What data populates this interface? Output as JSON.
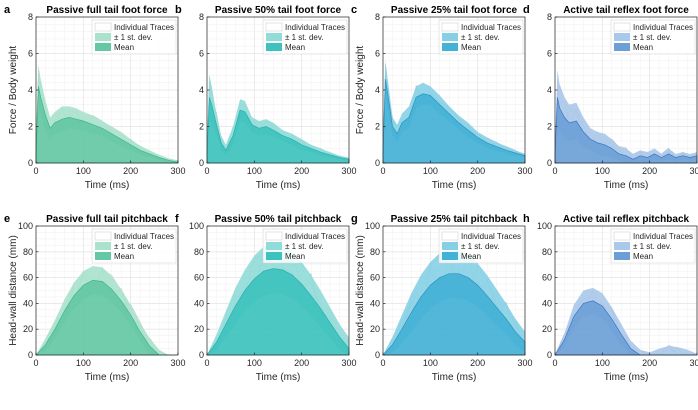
{
  "palette": {
    "green_light": "#a9e2cd",
    "green_mid": "#64c8a4",
    "green_dark": "#3fb58b",
    "teal_light": "#8fdcd8",
    "teal_mid": "#3ec2bd",
    "teal_dark": "#2aaeb0",
    "blue_light": "#86d0e6",
    "blue_mid": "#44b1d6",
    "blue_dark": "#2b93c1",
    "royal_light": "#aac8ea",
    "royal_mid": "#6d9fd7",
    "royal_dark": "#3b77c4",
    "trace_gray": "#c8c8c8",
    "grid": "#e6e6e6"
  },
  "legend_labels": [
    "Individual Traces",
    "± 1 st. dev.",
    "Mean"
  ],
  "chart_data": [
    {
      "type": "area",
      "panel": "a",
      "title": "Passive full tail foot force",
      "xlabel": "Time (ms)",
      "ylabel": "Force / Body weight",
      "xlim": [
        0,
        300
      ],
      "ylim": [
        0,
        8
      ],
      "xticks": [
        0,
        100,
        200,
        300
      ],
      "yticks": [
        0,
        2,
        4,
        6,
        8
      ],
      "grid": true,
      "legend_position": "top-right",
      "color": "green",
      "x": [
        0,
        5,
        10,
        20,
        30,
        40,
        55,
        70,
        85,
        100,
        120,
        140,
        160,
        180,
        200,
        220,
        240,
        260,
        280,
        300
      ],
      "mean": [
        0.5,
        4.2,
        3.6,
        2.6,
        1.9,
        2.2,
        2.4,
        2.5,
        2.4,
        2.3,
        2.1,
        1.9,
        1.6,
        1.3,
        1.0,
        0.7,
        0.5,
        0.3,
        0.15,
        0.05
      ],
      "std": [
        0.4,
        1.2,
        1.0,
        0.8,
        0.6,
        0.6,
        0.7,
        0.6,
        0.6,
        0.5,
        0.5,
        0.4,
        0.4,
        0.4,
        0.3,
        0.25,
        0.2,
        0.15,
        0.1,
        0.1
      ]
    },
    {
      "type": "area",
      "panel": "b",
      "title": "Passive 50% tail foot force",
      "xlabel": "Time (ms)",
      "ylabel": "",
      "xlim": [
        0,
        300
      ],
      "ylim": [
        0,
        8
      ],
      "xticks": [
        0,
        100,
        200,
        300
      ],
      "yticks": [
        0,
        2,
        4,
        6,
        8
      ],
      "grid": true,
      "legend_position": "top-right",
      "color": "teal",
      "x": [
        0,
        5,
        10,
        20,
        30,
        40,
        55,
        70,
        80,
        95,
        110,
        125,
        140,
        160,
        180,
        200,
        220,
        240,
        260,
        280,
        300
      ],
      "mean": [
        0.5,
        3.6,
        3.2,
        2.1,
        1.1,
        0.7,
        1.5,
        2.9,
        2.8,
        2.1,
        1.9,
        2.0,
        1.8,
        1.5,
        1.3,
        1.0,
        0.8,
        0.6,
        0.45,
        0.3,
        0.2
      ],
      "std": [
        0.4,
        1.2,
        1.0,
        0.6,
        0.4,
        0.3,
        0.5,
        0.6,
        0.6,
        0.4,
        0.4,
        0.4,
        0.4,
        0.3,
        0.3,
        0.3,
        0.2,
        0.2,
        0.15,
        0.1,
        0.1
      ]
    },
    {
      "type": "area",
      "panel": "c",
      "title": "Passive 25% tail foot force",
      "xlabel": "Time (ms)",
      "ylabel": "Force / Body weight",
      "xlim": [
        0,
        300
      ],
      "ylim": [
        0,
        8
      ],
      "xticks": [
        0,
        100,
        200,
        300
      ],
      "yticks": [
        0,
        2,
        4,
        6,
        8
      ],
      "grid": true,
      "legend_position": "top-right",
      "color": "blue",
      "x": [
        0,
        5,
        10,
        20,
        30,
        40,
        55,
        70,
        85,
        100,
        120,
        140,
        160,
        180,
        200,
        220,
        240,
        260,
        280,
        300
      ],
      "mean": [
        0.5,
        4.6,
        3.8,
        2.0,
        1.6,
        2.2,
        2.5,
        3.6,
        3.8,
        3.7,
        3.2,
        2.7,
        2.2,
        1.8,
        1.4,
        1.1,
        0.9,
        0.7,
        0.55,
        0.4
      ],
      "std": [
        0.4,
        1.0,
        0.8,
        0.5,
        0.5,
        0.5,
        0.6,
        0.6,
        0.6,
        0.5,
        0.5,
        0.4,
        0.4,
        0.4,
        0.3,
        0.3,
        0.25,
        0.2,
        0.15,
        0.1
      ]
    },
    {
      "type": "area",
      "panel": "d",
      "title": "Active tail reflex foot force",
      "xlabel": "Time (ms)",
      "ylabel": "",
      "xlim": [
        0,
        300
      ],
      "ylim": [
        0,
        8
      ],
      "xticks": [
        0,
        100,
        200,
        300
      ],
      "yticks": [
        0,
        2,
        4,
        6,
        8
      ],
      "grid": true,
      "legend_position": "top-right",
      "color": "royal",
      "x": [
        0,
        5,
        10,
        20,
        30,
        45,
        60,
        75,
        90,
        105,
        120,
        135,
        150,
        165,
        180,
        195,
        210,
        225,
        240,
        255,
        270,
        285,
        300
      ],
      "mean": [
        0.5,
        3.6,
        3.0,
        2.5,
        2.2,
        2.3,
        1.7,
        1.3,
        1.1,
        1.0,
        0.8,
        0.5,
        0.4,
        0.2,
        0.4,
        0.3,
        0.5,
        0.3,
        0.5,
        0.3,
        0.4,
        0.3,
        0.4
      ],
      "std": [
        0.4,
        1.5,
        1.3,
        1.1,
        1.0,
        1.0,
        0.8,
        0.6,
        0.6,
        0.6,
        0.5,
        0.4,
        0.4,
        0.3,
        0.3,
        0.3,
        0.3,
        0.2,
        0.3,
        0.2,
        0.2,
        0.2,
        0.2
      ]
    },
    {
      "type": "area",
      "panel": "e",
      "title": "Passive full tail pitchback",
      "xlabel": "Time (ms)",
      "ylabel": "Head-wall distance (mm)",
      "xlim": [
        0,
        300
      ],
      "ylim": [
        0,
        100
      ],
      "xticks": [
        0,
        100,
        200,
        300
      ],
      "yticks": [
        0,
        20,
        40,
        60,
        80,
        100
      ],
      "grid": true,
      "legend_position": "top-right",
      "color": "green",
      "x": [
        0,
        20,
        40,
        60,
        80,
        100,
        120,
        140,
        160,
        180,
        200,
        220,
        240,
        260,
        280,
        300
      ],
      "mean": [
        0,
        8,
        20,
        34,
        46,
        54,
        58,
        57,
        51,
        42,
        31,
        18,
        7,
        0,
        0,
        0
      ],
      "std": [
        0,
        5,
        7,
        9,
        10,
        11,
        11,
        11,
        10,
        9,
        8,
        7,
        6,
        4,
        0,
        0
      ]
    },
    {
      "type": "area",
      "panel": "f",
      "title": "Passive 50% tail pitchback",
      "xlabel": "Time (ms)",
      "ylabel": "",
      "xlim": [
        0,
        300
      ],
      "ylim": [
        0,
        100
      ],
      "xticks": [
        0,
        100,
        200,
        300
      ],
      "yticks": [
        0,
        20,
        40,
        60,
        80,
        100
      ],
      "grid": true,
      "legend_position": "top-right",
      "color": "teal",
      "x": [
        0,
        20,
        40,
        60,
        80,
        100,
        120,
        140,
        160,
        180,
        200,
        220,
        240,
        260,
        280,
        300
      ],
      "mean": [
        0,
        10,
        24,
        38,
        50,
        59,
        65,
        67,
        66,
        62,
        55,
        46,
        36,
        25,
        14,
        5
      ],
      "std": [
        0,
        6,
        10,
        14,
        16,
        18,
        19,
        19,
        19,
        18,
        17,
        16,
        14,
        12,
        10,
        8
      ]
    },
    {
      "type": "area",
      "panel": "g",
      "title": "Passive 25% tail pitchback",
      "xlabel": "Time (ms)",
      "ylabel": "Head-wall distance (mm)",
      "xlim": [
        0,
        300
      ],
      "ylim": [
        0,
        100
      ],
      "xticks": [
        0,
        100,
        200,
        300
      ],
      "yticks": [
        0,
        20,
        40,
        60,
        80,
        100
      ],
      "grid": true,
      "legend_position": "top-right",
      "color": "blue",
      "x": [
        0,
        20,
        40,
        60,
        80,
        100,
        120,
        140,
        160,
        180,
        200,
        220,
        240,
        260,
        280,
        300
      ],
      "mean": [
        0,
        8,
        20,
        33,
        45,
        54,
        60,
        63,
        63,
        60,
        54,
        46,
        37,
        28,
        18,
        10
      ],
      "std": [
        0,
        6,
        11,
        15,
        17,
        18,
        19,
        19,
        19,
        18,
        17,
        16,
        14,
        12,
        10,
        8
      ]
    },
    {
      "type": "area",
      "panel": "h",
      "title": "Active tail reflex pitchback",
      "xlabel": "Time (ms)",
      "ylabel": "",
      "xlim": [
        0,
        300
      ],
      "ylim": [
        0,
        100
      ],
      "xticks": [
        0,
        100,
        200,
        300
      ],
      "yticks": [
        0,
        20,
        40,
        60,
        80,
        100
      ],
      "grid": true,
      "legend_position": "top-right",
      "color": "royal",
      "x": [
        0,
        20,
        40,
        60,
        80,
        100,
        120,
        140,
        160,
        180,
        200,
        220,
        240,
        260,
        280,
        300
      ],
      "mean": [
        0,
        12,
        30,
        40,
        42,
        38,
        28,
        16,
        5,
        0,
        0,
        0,
        0,
        0,
        0,
        0
      ],
      "std": [
        0,
        5,
        9,
        10,
        10,
        10,
        9,
        8,
        6,
        4,
        2,
        5,
        7,
        6,
        4,
        1
      ]
    }
  ]
}
